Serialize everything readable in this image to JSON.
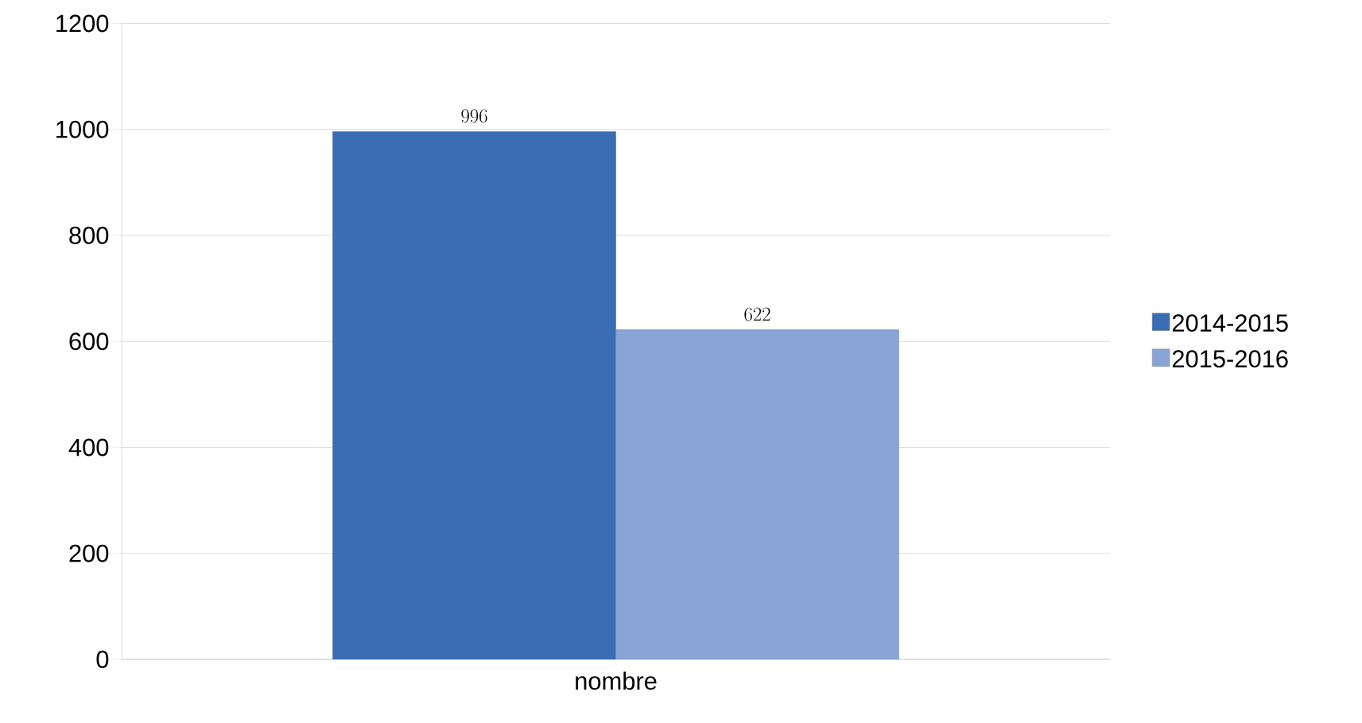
{
  "chart_data": {
    "type": "bar",
    "categories": [
      "nombre"
    ],
    "series": [
      {
        "name": "2014-2015",
        "color": "#3a6db4",
        "values": [
          996
        ]
      },
      {
        "name": "2015-2016",
        "color": "#88a5d6",
        "values": [
          622
        ]
      }
    ],
    "ylim": [
      0,
      1200
    ],
    "yticks": [
      0,
      200,
      400,
      600,
      800,
      1000,
      1200
    ],
    "grid": "y",
    "legend": "right",
    "data_labels": true
  }
}
